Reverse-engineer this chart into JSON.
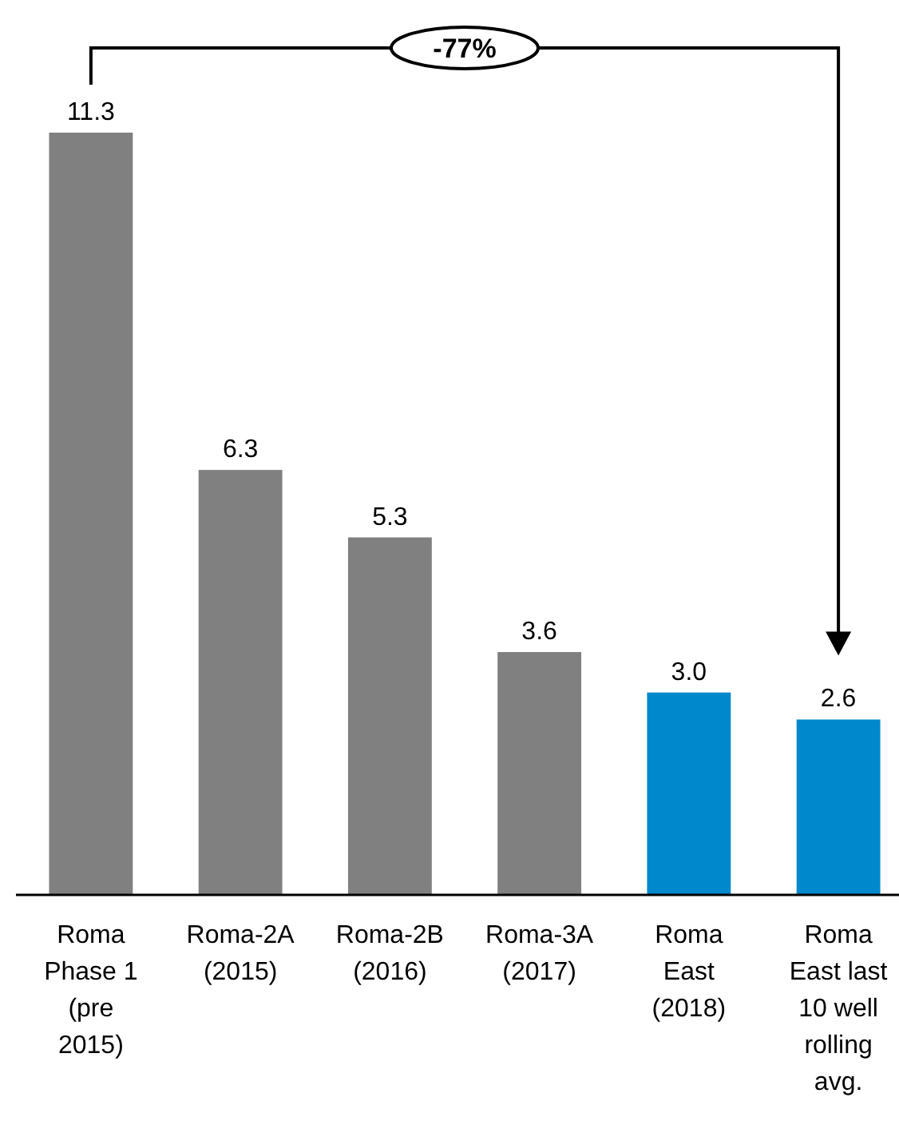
{
  "chart_data": {
    "type": "bar",
    "categories": [
      "Roma Phase 1 (pre 2015)",
      "Roma-2A (2015)",
      "Roma-2B (2016)",
      "Roma-3A (2017)",
      "Roma East (2018)",
      "Roma East last 10 well rolling avg."
    ],
    "values": [
      11.3,
      6.3,
      5.3,
      3.6,
      3.0,
      2.6
    ],
    "colors": [
      "#808080",
      "#808080",
      "#808080",
      "#808080",
      "#0088cc",
      "#0088cc"
    ],
    "value_labels": [
      "11.3",
      "6.3",
      "5.3",
      "3.6",
      "3.0",
      "2.6"
    ],
    "annotations": [
      "-77%"
    ]
  }
}
